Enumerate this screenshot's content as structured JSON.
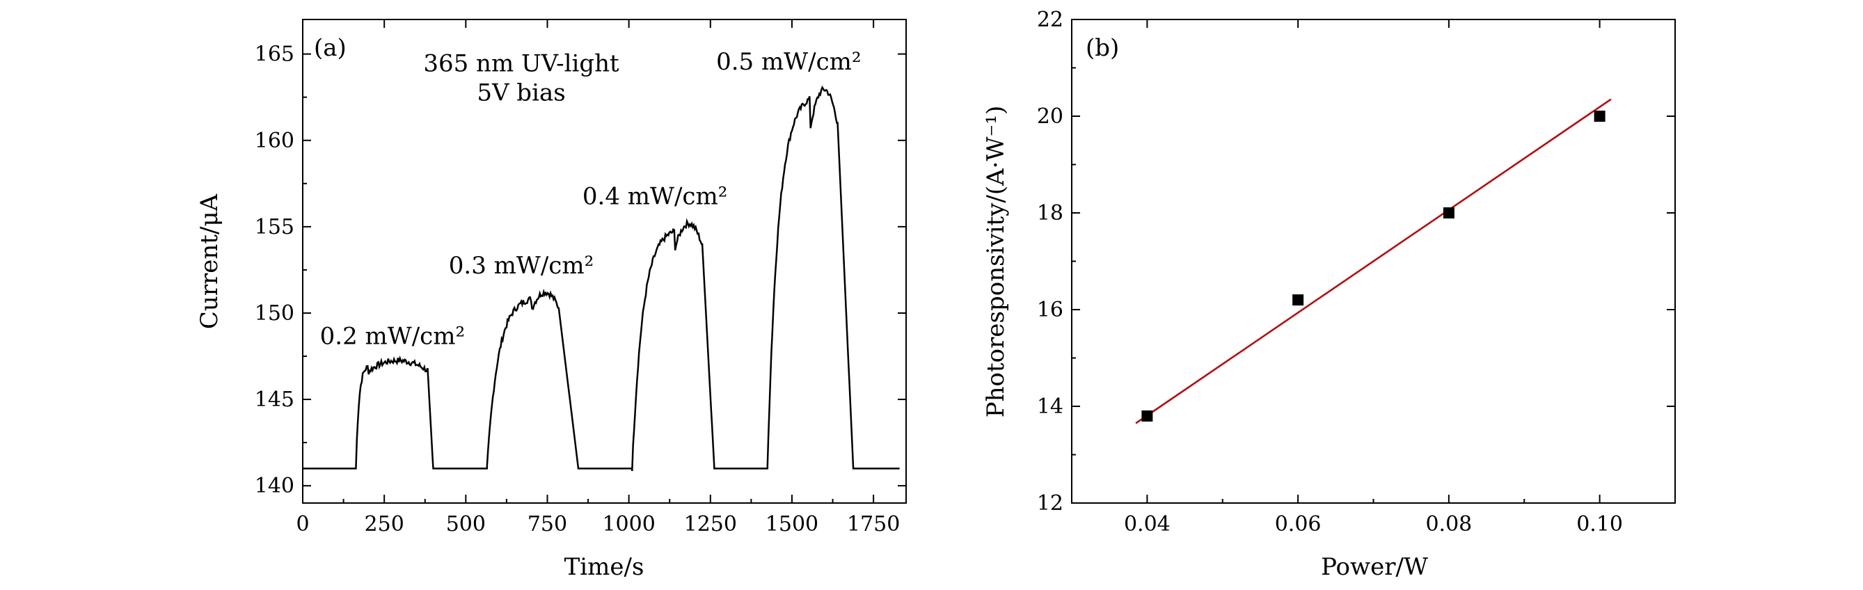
{
  "chart_data": [
    {
      "panel_label": "(a)",
      "type": "line",
      "xlabel": "Time/s",
      "ylabel": "Current/μA",
      "xlim": [
        0,
        1850
      ],
      "ylim": [
        139,
        167
      ],
      "xticks": [
        0,
        250,
        500,
        750,
        1000,
        1250,
        1500,
        1750
      ],
      "yticks": [
        140,
        145,
        150,
        155,
        160,
        165
      ],
      "annotations": [
        {
          "text": "365 nm UV-light",
          "x": 670,
          "y": 164
        },
        {
          "text": "5V bias",
          "x": 670,
          "y": 162.3
        },
        {
          "text": "0.2 mW/cm²",
          "x": 275,
          "y": 148.2
        },
        {
          "text": "0.3 mW/cm²",
          "x": 670,
          "y": 152.3
        },
        {
          "text": "0.4 mW/cm²",
          "x": 1080,
          "y": 156.3
        },
        {
          "text": "0.5 mW/cm²",
          "x": 1490,
          "y": 164.1
        }
      ],
      "baseline": 141,
      "pulses": [
        {
          "intensity": "0.2 mW/cm²",
          "on": 163,
          "off": 383,
          "rise_end": 200,
          "plateau": 147,
          "fall_end": 400
        },
        {
          "intensity": "0.3 mW/cm²",
          "on": 565,
          "off": 785,
          "rise_end": 700,
          "plateau": 151,
          "fall_end": 845
        },
        {
          "intensity": "0.4 mW/cm²",
          "on": 1010,
          "off": 1225,
          "rise_end": 1140,
          "plateau": 155,
          "fall_end": 1262
        },
        {
          "intensity": "0.5 mW/cm²",
          "on": 1425,
          "off": 1640,
          "rise_end": 1555,
          "plateau": 162.8,
          "fall_end": 1688
        }
      ],
      "grid": false
    },
    {
      "panel_label": "(b)",
      "type": "scatter",
      "xlabel": "Power/W",
      "ylabel": "Photoresponsivity/(A·W⁻¹)",
      "xlim": [
        0.03,
        0.11
      ],
      "ylim": [
        12,
        22
      ],
      "xticks": [
        "0.04",
        "0.06",
        "0.08",
        "0.10"
      ],
      "yticks": [
        12,
        14,
        16,
        18,
        20,
        22
      ],
      "points": {
        "x": [
          0.04,
          0.06,
          0.08,
          0.1
        ],
        "y": [
          13.8,
          16.2,
          18.0,
          20.0
        ]
      },
      "fit_line": {
        "x": [
          0.0385,
          0.1015
        ],
        "y": [
          13.65,
          20.35
        ],
        "color": "#cc0000"
      },
      "marker_color": "#000000",
      "grid": false
    }
  ]
}
